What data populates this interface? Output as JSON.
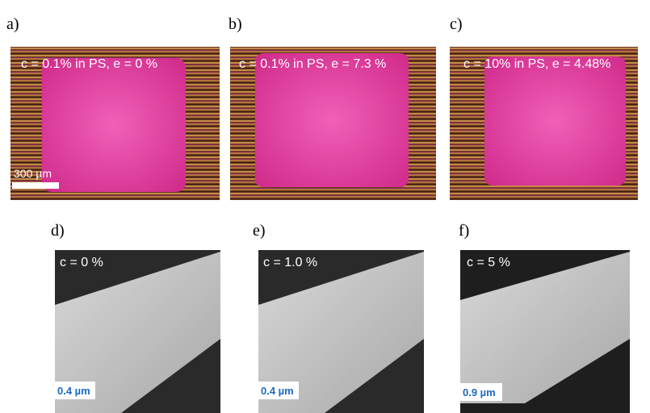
{
  "panels": [
    {
      "label": "a)",
      "caption": "c = 0.1% in PS, e = 0 %",
      "scale_bar": "300 µm"
    },
    {
      "label": "b)",
      "caption": "c = 0.1% in PS, e = 7.3 %"
    },
    {
      "label": "c)",
      "caption": "c = 10% in PS, e = 4.48%"
    },
    {
      "label": "d)",
      "caption": "c = 0 %",
      "scale_bar": "0.4 µm"
    },
    {
      "label": "e)",
      "caption": "c = 1.0 %",
      "scale_bar": "0.4 µm"
    },
    {
      "label": "f)",
      "caption": "c = 5 %",
      "scale_bar": "0.9 µm"
    }
  ]
}
